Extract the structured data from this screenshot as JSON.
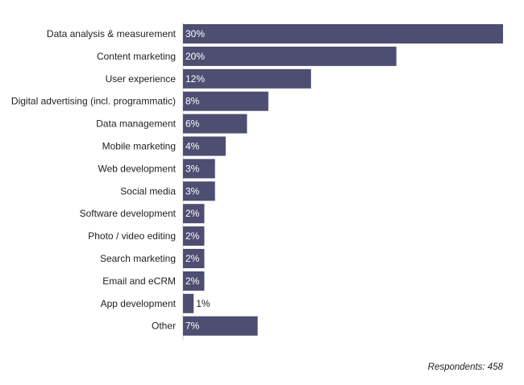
{
  "chart_data": {
    "type": "bar",
    "orientation": "horizontal",
    "categories": [
      "Data analysis & measurement",
      "Content marketing",
      "User experience",
      "Digital advertising (incl. programmatic)",
      "Data management",
      "Mobile marketing",
      "Web development",
      "Social media",
      "Software development",
      "Photo / video editing",
      "Search marketing",
      "Email and eCRM",
      "App development",
      "Other"
    ],
    "values": [
      30,
      20,
      12,
      8,
      6,
      4,
      3,
      3,
      2,
      2,
      2,
      2,
      1,
      7
    ],
    "value_labels": [
      "30%",
      "20%",
      "12%",
      "8%",
      "6%",
      "4%",
      "3%",
      "3%",
      "2%",
      "2%",
      "2%",
      "2%",
      "1%",
      "7%"
    ],
    "xlim": [
      0,
      30
    ],
    "grid": false,
    "legend": "none",
    "bar_color": "#4e4e72",
    "label_color_inside": "#ffffff",
    "label_color_outside": "#222222"
  },
  "footnote": "Respondents: 458"
}
